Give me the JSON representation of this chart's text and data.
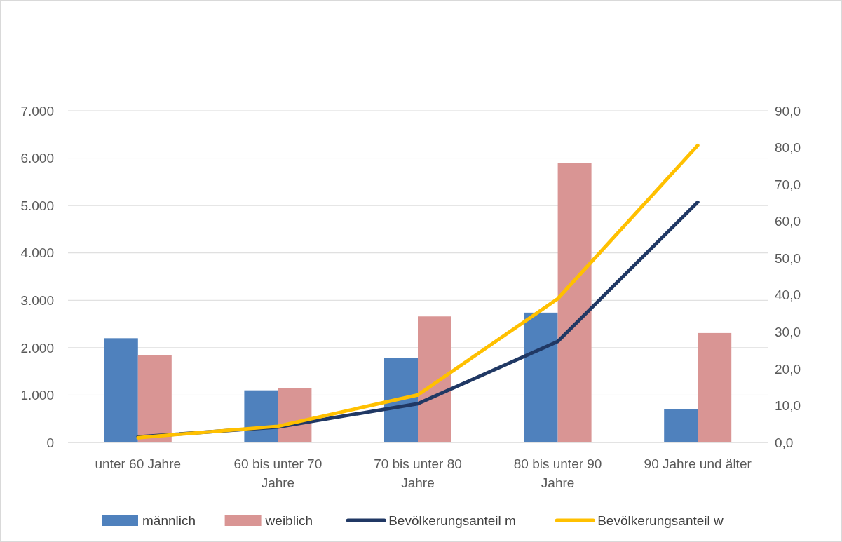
{
  "chart_data": {
    "type": "bar",
    "categories": [
      "unter 60 Jahre",
      "60 bis unter 70 Jahre",
      "70 bis unter 80 Jahre",
      "80 bis unter 90 Jahre",
      "90 Jahre und älter"
    ],
    "series": [
      {
        "name": "männlich",
        "color": "#4f81bd",
        "values": [
          2200,
          1100,
          1780,
          2740,
          700
        ]
      },
      {
        "name": "weiblich",
        "color": "#d99594",
        "values": [
          1840,
          1150,
          2660,
          5890,
          2310
        ]
      },
      {
        "name": "Bevölkerungsanteil m",
        "type": "line",
        "axis": "y2",
        "color": "#203864",
        "values": [
          1.5,
          4.2,
          10.5,
          27.4,
          65.2
        ]
      },
      {
        "name": "Bevölkerungsanteil w",
        "type": "line",
        "axis": "y2",
        "color": "#ffc000",
        "values": [
          1.3,
          4.4,
          12.9,
          39.0,
          80.6
        ]
      }
    ],
    "ylim": [
      0,
      7000
    ],
    "yticks": [
      {
        "value": 0,
        "label": "0"
      },
      {
        "value": 1000,
        "label": "1.000"
      },
      {
        "value": 2000,
        "label": "2.000"
      },
      {
        "value": 3000,
        "label": "3.000"
      },
      {
        "value": 4000,
        "label": "4.000"
      },
      {
        "value": 5000,
        "label": "5.000"
      },
      {
        "value": 6000,
        "label": "6.000"
      },
      {
        "value": 7000,
        "label": "7.000"
      }
    ],
    "y2lim": [
      0,
      90
    ],
    "y2ticks": [
      {
        "value": 0,
        "label": "0,0"
      },
      {
        "value": 10,
        "label": "10,0"
      },
      {
        "value": 20,
        "label": "20,0"
      },
      {
        "value": 30,
        "label": "30,0"
      },
      {
        "value": 40,
        "label": "40,0"
      },
      {
        "value": 50,
        "label": "50,0"
      },
      {
        "value": 60,
        "label": "60,0"
      },
      {
        "value": 70,
        "label": "70,0"
      },
      {
        "value": 80,
        "label": "80,0"
      },
      {
        "value": 90,
        "label": "90,0"
      }
    ],
    "grid": "y",
    "legend": "bottom",
    "marker": "none",
    "line_style": "solid"
  }
}
